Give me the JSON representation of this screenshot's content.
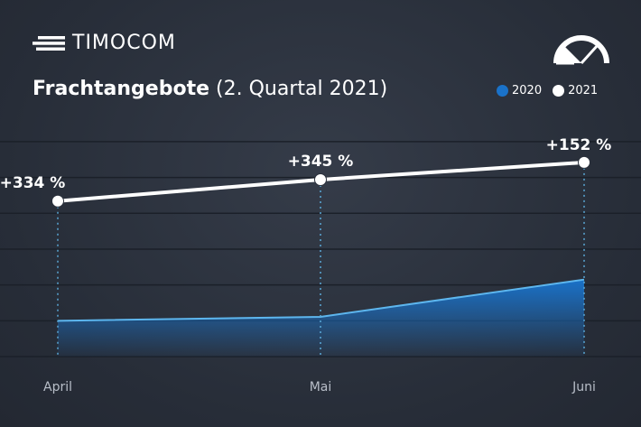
{
  "brand": {
    "name": "TIMOCOM"
  },
  "icons": {
    "logo": "speed-lines-icon",
    "gauge": "gauge-icon"
  },
  "colors": {
    "background": "#2b313c",
    "series_2020": "#1a72c9",
    "series_2021": "#ffffff",
    "grid": "#1b2029",
    "guide": "#5aa9d8",
    "label": "#b8bec8"
  },
  "title": {
    "bold": "Frachtangebote",
    "light": "(2. Quartal 2021)"
  },
  "legend": [
    {
      "label": "2020",
      "color": "#1a72c9"
    },
    {
      "label": "2021",
      "color": "#ffffff"
    }
  ],
  "chart_data": {
    "type": "line",
    "categories": [
      "April",
      "Mai",
      "Juni"
    ],
    "series": [
      {
        "name": "2020",
        "type": "area",
        "values": [
          100,
          111,
          215
        ]
      },
      {
        "name": "2021",
        "type": "line",
        "values": [
          434,
          494,
          542
        ],
        "labels": [
          "+334 %",
          "+345 %",
          "+152 %"
        ]
      }
    ],
    "ylim": [
      0,
      630
    ],
    "grid": true,
    "legend_position": "top-right"
  }
}
